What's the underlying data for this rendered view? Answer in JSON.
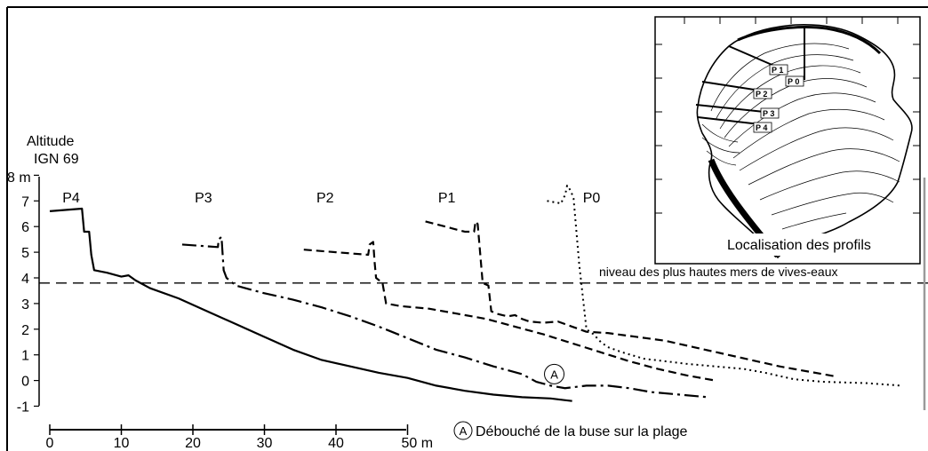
{
  "chart_data": {
    "type": "line",
    "y_axis": {
      "label_line1": "Altitude",
      "label_line2": "IGN 69",
      "top_tick_label": "8 m",
      "tick_labels": [
        "-1",
        "0",
        "1",
        "2",
        "3",
        "4",
        "5",
        "6",
        "7"
      ],
      "ylim": [
        -1,
        8
      ]
    },
    "x_scale_bar": {
      "tick_labels": [
        "0",
        "10",
        "20",
        "30",
        "40",
        "50 m"
      ],
      "range": [
        0,
        50
      ]
    },
    "reference_line": {
      "label": "niveau des plus hautes mers de vives-eaux",
      "y": 3.8,
      "style": "dashed"
    },
    "series": [
      {
        "name": "P4",
        "style": "solid",
        "points": [
          [
            0,
            6.6
          ],
          [
            4.5,
            6.7
          ],
          [
            4.8,
            5.8
          ],
          [
            5.5,
            5.8
          ],
          [
            5.8,
            4.9
          ],
          [
            6.2,
            4.3
          ],
          [
            8,
            4.2
          ],
          [
            10,
            4.05
          ],
          [
            11,
            4.1
          ],
          [
            12,
            3.9
          ],
          [
            14,
            3.6
          ],
          [
            18,
            3.2
          ],
          [
            22,
            2.7
          ],
          [
            26,
            2.2
          ],
          [
            30,
            1.7
          ],
          [
            34,
            1.2
          ],
          [
            38,
            0.8
          ],
          [
            42,
            0.55
          ],
          [
            46,
            0.3
          ],
          [
            50,
            0.1
          ],
          [
            54,
            -0.2
          ],
          [
            58,
            -0.4
          ],
          [
            62,
            -0.55
          ],
          [
            66,
            -0.65
          ],
          [
            70,
            -0.7
          ],
          [
            73,
            -0.8
          ]
        ]
      },
      {
        "name": "P3",
        "style": "dash-dot",
        "points": [
          [
            18.5,
            5.3
          ],
          [
            23.5,
            5.2
          ],
          [
            23.6,
            5.5
          ],
          [
            24,
            5.6
          ],
          [
            24.3,
            4.3
          ],
          [
            24.7,
            4.0
          ],
          [
            26,
            3.7
          ],
          [
            30,
            3.4
          ],
          [
            34,
            3.15
          ],
          [
            38,
            2.85
          ],
          [
            42,
            2.5
          ],
          [
            46,
            2.1
          ],
          [
            50,
            1.65
          ],
          [
            54,
            1.2
          ],
          [
            58,
            0.9
          ],
          [
            62,
            0.55
          ],
          [
            66,
            0.25
          ],
          [
            68,
            -0.05
          ],
          [
            70,
            -0.2
          ],
          [
            72,
            -0.3
          ],
          [
            75,
            -0.2
          ],
          [
            78,
            -0.2
          ],
          [
            81,
            -0.3
          ],
          [
            84,
            -0.45
          ],
          [
            88,
            -0.55
          ],
          [
            92,
            -0.65
          ]
        ]
      },
      {
        "name": "P2",
        "style": "dashed",
        "points": [
          [
            35.5,
            5.1
          ],
          [
            40,
            5.0
          ],
          [
            44.5,
            4.9
          ],
          [
            44.7,
            5.3
          ],
          [
            45.2,
            5.4
          ],
          [
            45.4,
            4.6
          ],
          [
            45.6,
            4.0
          ],
          [
            46.5,
            3.8
          ],
          [
            47,
            3.0
          ],
          [
            49,
            2.9
          ],
          [
            53,
            2.8
          ],
          [
            57,
            2.6
          ],
          [
            61,
            2.4
          ],
          [
            65,
            2.1
          ],
          [
            69,
            1.8
          ],
          [
            73,
            1.45
          ],
          [
            77,
            1.1
          ],
          [
            81,
            0.75
          ],
          [
            85,
            0.45
          ],
          [
            89,
            0.2
          ],
          [
            93,
            0
          ]
        ]
      },
      {
        "name": "P1",
        "style": "dashed",
        "points": [
          [
            52.5,
            6.2
          ],
          [
            58,
            5.8
          ],
          [
            59.3,
            5.8
          ],
          [
            59.5,
            6.2
          ],
          [
            59.8,
            6.1
          ],
          [
            60.5,
            3.8
          ],
          [
            61.3,
            3.7
          ],
          [
            61.7,
            2.7
          ],
          [
            62.5,
            2.6
          ],
          [
            64,
            2.5
          ],
          [
            65,
            2.55
          ],
          [
            66,
            2.4
          ],
          [
            67,
            2.3
          ],
          [
            69,
            2.25
          ],
          [
            71,
            2.3
          ],
          [
            73,
            2.1
          ],
          [
            75,
            1.9
          ],
          [
            78,
            1.85
          ],
          [
            82,
            1.7
          ],
          [
            86,
            1.55
          ],
          [
            90,
            1.3
          ],
          [
            94,
            1.05
          ],
          [
            98,
            0.8
          ],
          [
            102,
            0.55
          ],
          [
            106,
            0.35
          ],
          [
            110,
            0.15
          ]
        ]
      },
      {
        "name": "P0",
        "style": "dotted",
        "points": [
          [
            69.5,
            7.0
          ],
          [
            71.5,
            6.9
          ],
          [
            71.7,
            7.1
          ],
          [
            72,
            7.2
          ],
          [
            72.3,
            7.6
          ],
          [
            72.8,
            7.4
          ],
          [
            73.2,
            7.1
          ],
          [
            74,
            4.5
          ],
          [
            75,
            2.0
          ],
          [
            76,
            1.8
          ],
          [
            77,
            1.5
          ],
          [
            78,
            1.3
          ],
          [
            80,
            1.1
          ],
          [
            83,
            0.85
          ],
          [
            86,
            0.75
          ],
          [
            89,
            0.65
          ],
          [
            93,
            0.55
          ],
          [
            97,
            0.45
          ],
          [
            100,
            0.3
          ],
          [
            104,
            0.05
          ],
          [
            108,
            -0.05
          ],
          [
            114,
            -0.1
          ],
          [
            119,
            -0.2
          ]
        ]
      }
    ],
    "annotation": {
      "marker": "A",
      "x": 70.5,
      "y": 0.25,
      "label": "Débouché de la buse sur la plage"
    },
    "inset": {
      "caption": "Localisation des profils",
      "profile_labels": [
        "P 1",
        "P 0",
        "P 2",
        "P 3",
        "P 4"
      ]
    }
  }
}
